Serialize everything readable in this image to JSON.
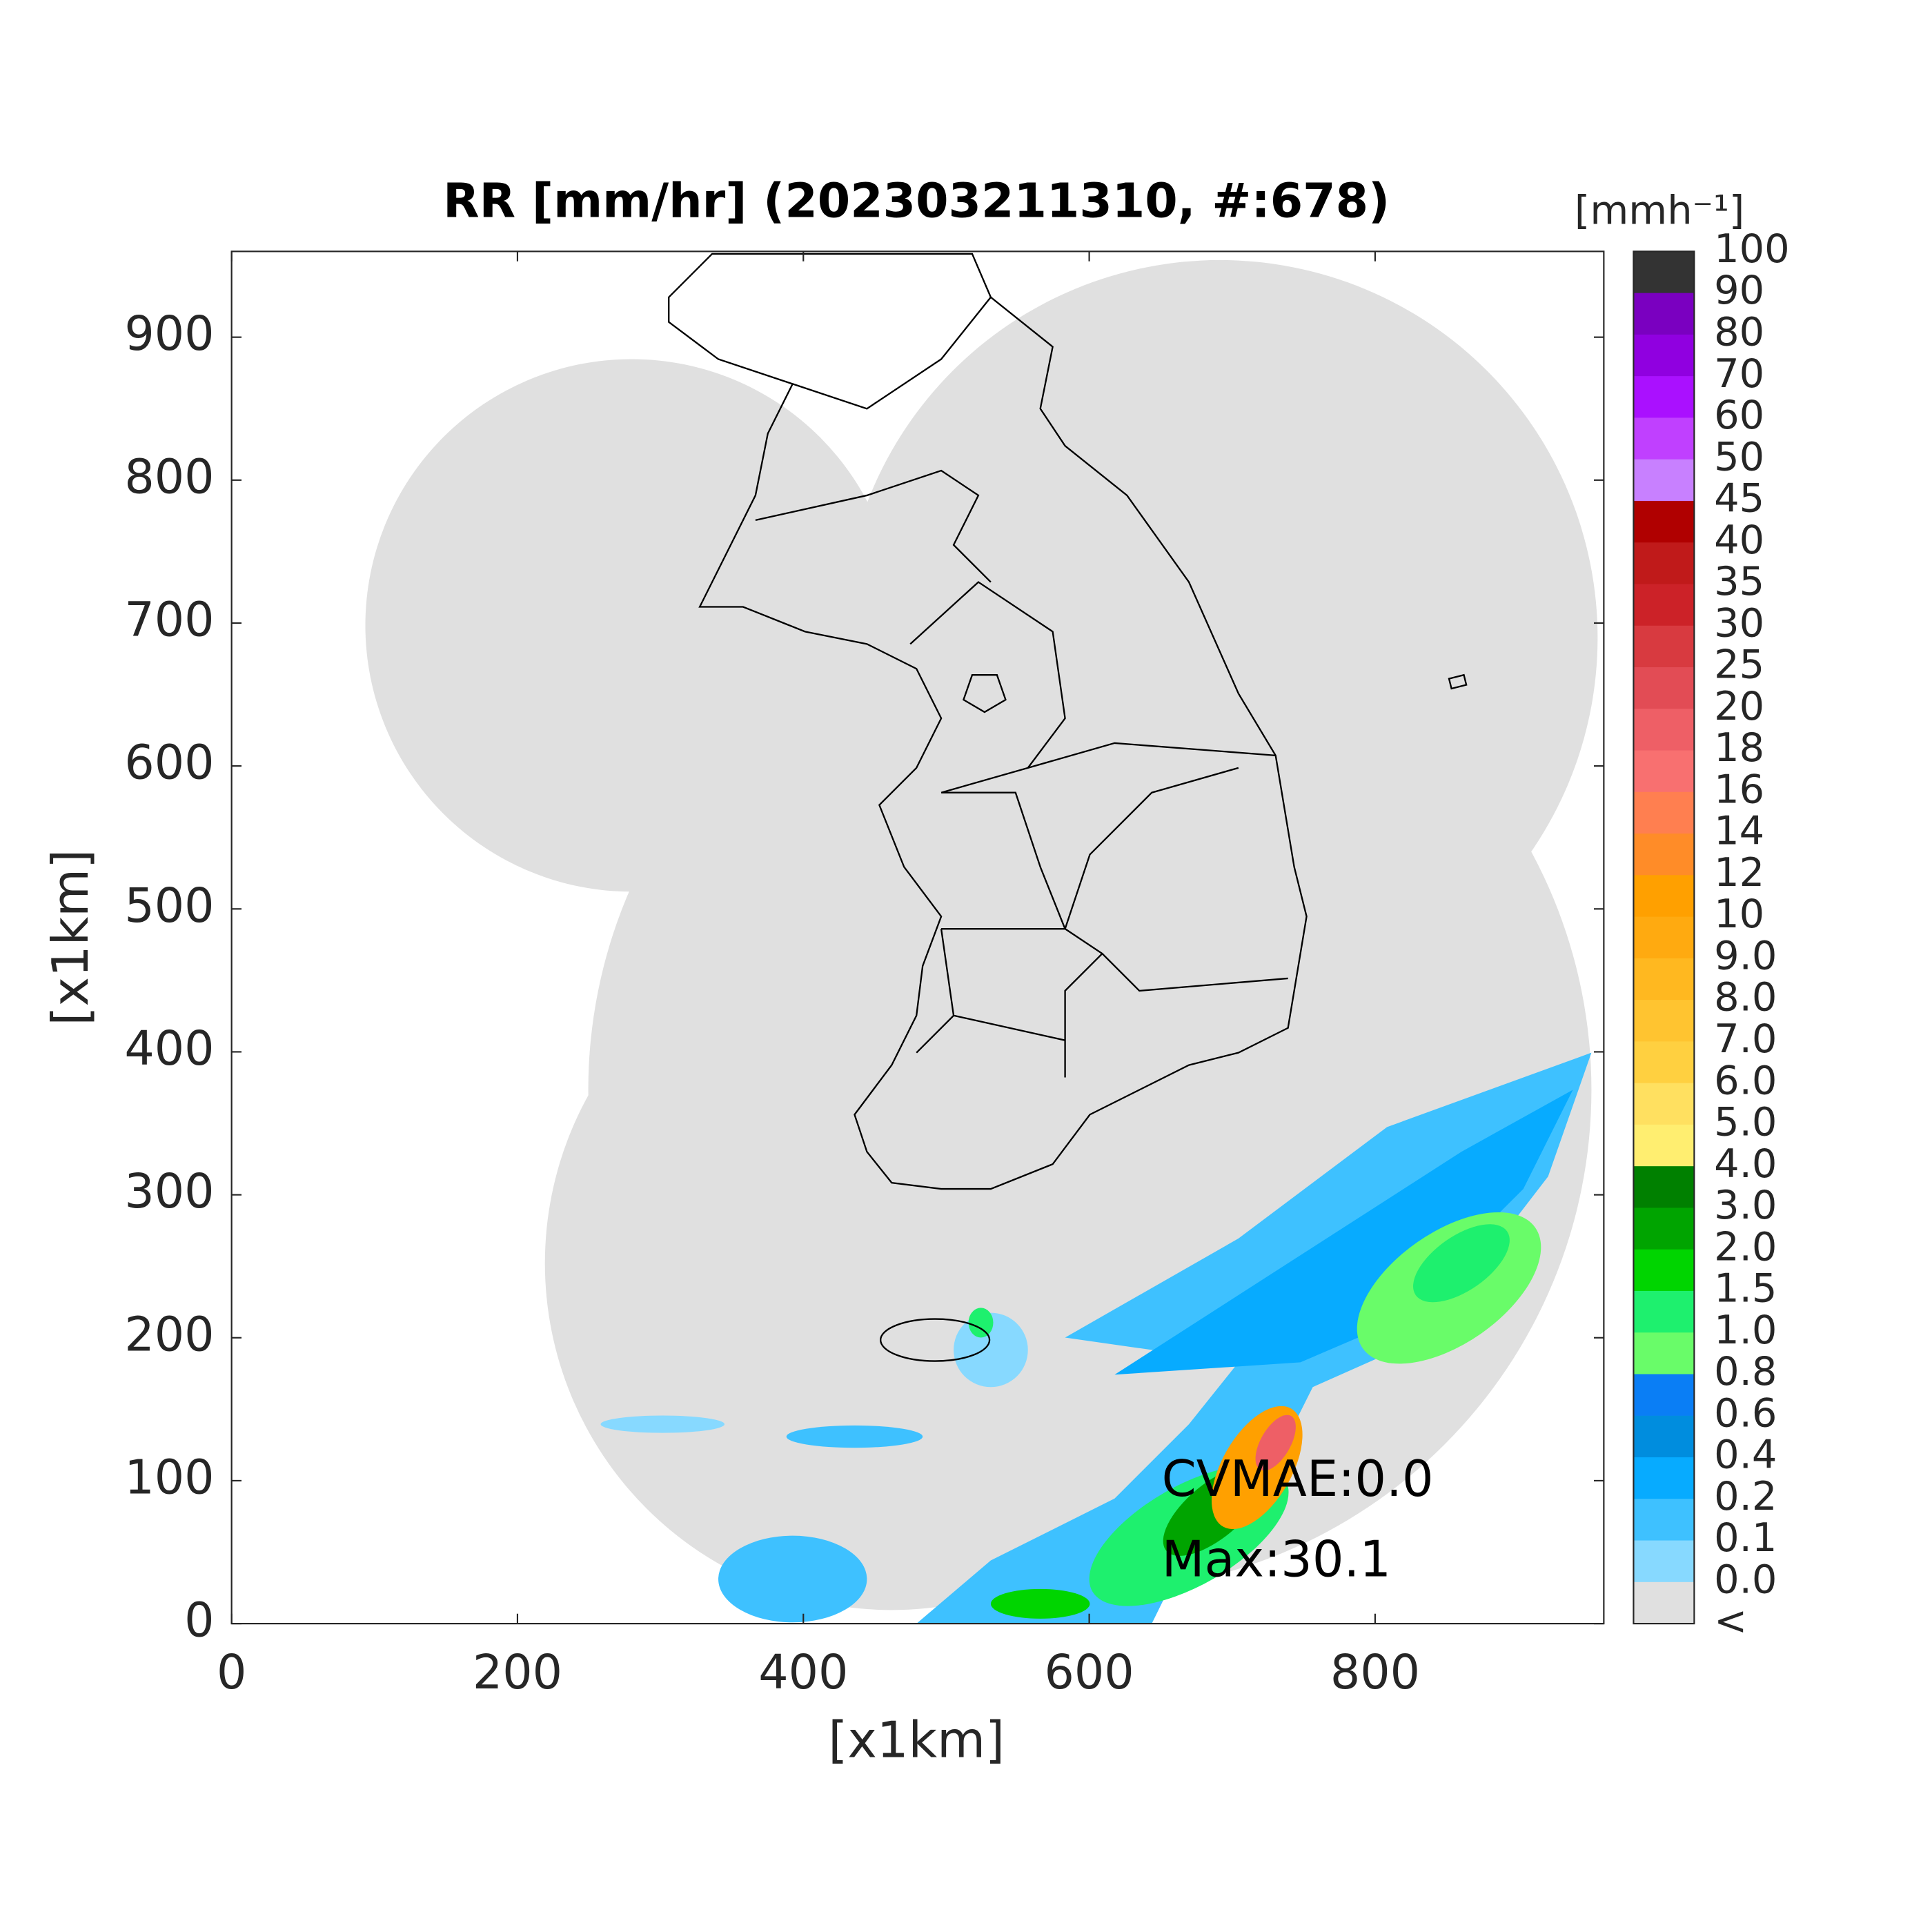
{
  "chart_data": {
    "type": "map",
    "title": "RR [mm/hr] (202303211310, #:678)",
    "x_label": "[x1km]",
    "y_label": "[x1km]",
    "xlim": [
      0,
      960
    ],
    "ylim": [
      0,
      960
    ],
    "xticks": [
      0,
      200,
      400,
      600,
      800
    ],
    "yticks": [
      0,
      100,
      200,
      300,
      400,
      500,
      600,
      700,
      800,
      900
    ],
    "annotations": [
      "CVMAE:0.0",
      "Max:30.1"
    ],
    "colorbar": {
      "title": "[mmh⁻¹]",
      "labels": [
        "100",
        "90",
        "80",
        "70",
        "60",
        "50",
        "45",
        "40",
        "35",
        "30",
        "25",
        "20",
        "18",
        "16",
        "14",
        "12",
        "10",
        "9.0",
        "8.0",
        "7.0",
        "6.0",
        "5.0",
        "4.0",
        "3.0",
        "2.0",
        "1.5",
        "1.0",
        "0.8",
        "0.6",
        "0.4",
        "0.2",
        "0.1",
        "0.0",
        "<"
      ],
      "colors": [
        "#333333",
        "#7a00c0",
        "#9000e0",
        "#aa10ff",
        "#c040ff",
        "#c880ff",
        "#b00000",
        "#c01a1a",
        "#cc2228",
        "#d83a40",
        "#e24c55",
        "#ee5f66",
        "#f87070",
        "#ff7f50",
        "#ff8c28",
        "#ffa000",
        "#ffaa10",
        "#ffb820",
        "#ffc430",
        "#ffd040",
        "#ffe060",
        "#ffee70",
        "#008000",
        "#00a400",
        "#00d500",
        "#1ef06e",
        "#69fc69",
        "#0a7ef5",
        "#008dde",
        "#07abff",
        "#3ec1ff",
        "#87d9ff",
        "#e0e0e0"
      ]
    }
  }
}
